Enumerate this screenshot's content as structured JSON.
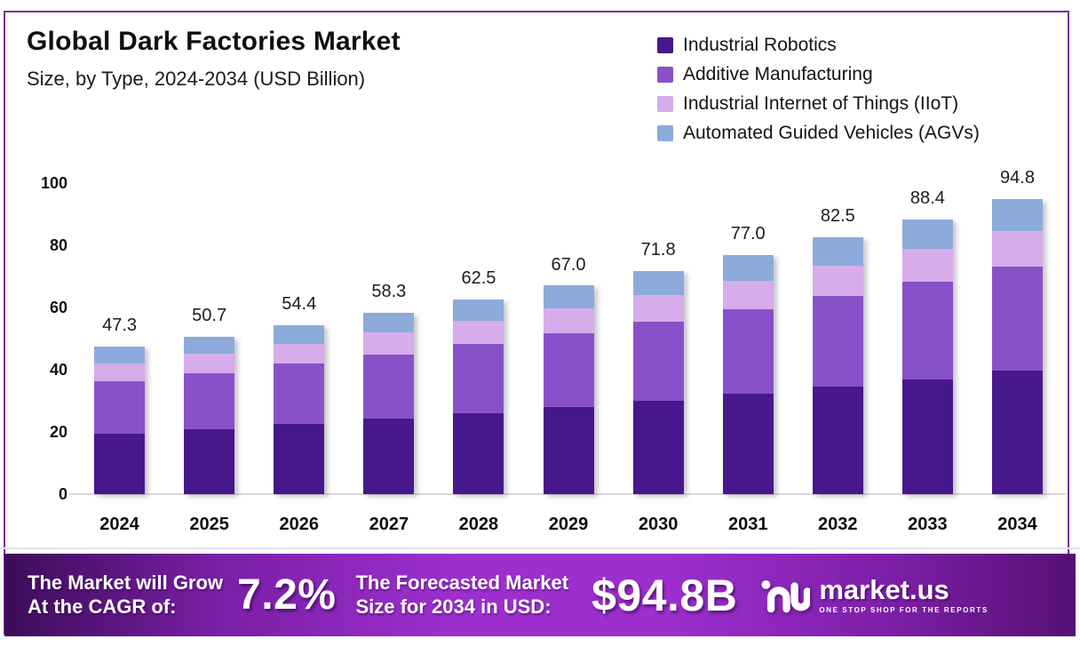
{
  "header": {
    "title": "Global Dark Factories Market",
    "subtitle": "Size, by Type, 2024-2034 (USD Billion)"
  },
  "chart_data": {
    "type": "bar",
    "stacked": true,
    "title": "Global Dark Factories Market Size, by Type, 2024-2034 (USD Billion)",
    "categories": [
      "2024",
      "2025",
      "2026",
      "2027",
      "2028",
      "2029",
      "2030",
      "2031",
      "2032",
      "2033",
      "2034"
    ],
    "series": [
      {
        "name": "Industrial Robotics",
        "color": "#46188c",
        "values": [
          19.5,
          21.0,
          22.6,
          24.3,
          26.1,
          28.0,
          30.0,
          32.2,
          34.5,
          37.0,
          39.7
        ]
      },
      {
        "name": "Additive Manufacturing",
        "color": "#8951c9",
        "values": [
          16.9,
          18.0,
          19.3,
          20.7,
          22.2,
          23.8,
          25.5,
          27.3,
          29.2,
          31.3,
          33.5
        ]
      },
      {
        "name": "Industrial Internet of Things (IIoT)",
        "color": "#d7aceb",
        "values": [
          5.6,
          6.1,
          6.5,
          6.9,
          7.4,
          7.9,
          8.5,
          9.1,
          9.8,
          10.5,
          11.3
        ]
      },
      {
        "name": "Automated Guided Vehicles (AGVs)",
        "color": "#8cabdb",
        "values": [
          5.3,
          5.6,
          6.0,
          6.4,
          6.8,
          7.3,
          7.8,
          8.4,
          9.0,
          9.6,
          10.3
        ]
      }
    ],
    "totals": [
      47.3,
      50.7,
      54.4,
      58.3,
      62.5,
      67.0,
      71.8,
      77.0,
      82.5,
      88.4,
      94.8
    ],
    "total_labels": [
      "47.3",
      "50.7",
      "54.4",
      "58.3",
      "62.5",
      "67.0",
      "71.8",
      "77.0",
      "82.5",
      "88.4",
      "94.8"
    ],
    "xlabel": "",
    "ylabel": "",
    "ylim": [
      0,
      100
    ],
    "yticks": [
      0,
      20,
      40,
      60,
      80,
      100
    ],
    "grid": false,
    "legend_position": "top-right"
  },
  "banner": {
    "cagr_label_line1": "The Market will Grow",
    "cagr_label_line2": "At the CAGR of:",
    "cagr_value": "7.2%",
    "forecast_label_line1": "The Forecasted Market",
    "forecast_label_line2": "Size for 2034 in USD:",
    "forecast_value": "$94.8B",
    "brand": {
      "name": "market.us",
      "tagline": "ONE STOP SHOP FOR THE REPORTS"
    }
  },
  "colors": {
    "frame_border": "#7c2e93",
    "banner_dark": "#3c0c58",
    "banner_bright": "#9c2fce",
    "axis_line": "#dcd8de",
    "text": "#111111"
  }
}
